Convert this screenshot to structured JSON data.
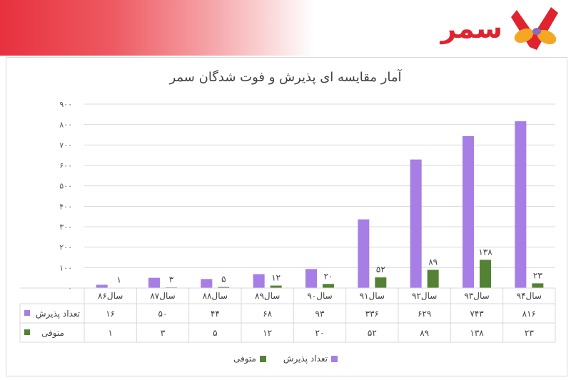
{
  "brand": {
    "name": "سمر",
    "logo_colors": [
      "#e0242f",
      "#f5a623",
      "#8a6bbf"
    ]
  },
  "chart_data": {
    "type": "bar",
    "title": "آمار مقایسه ای پذیرش و فوت شدگان سمر",
    "categories": [
      "سال۸۶",
      "سال۸۷",
      "سال۸۸",
      "سال۸۹",
      "سال۹۰",
      "سال۹۱",
      "سال۹۲",
      "سال۹۳",
      "سال۹۴"
    ],
    "series": [
      {
        "name": "تعداد پذیرش",
        "color": "#a67ee6",
        "values": [
          16,
          50,
          44,
          68,
          93,
          336,
          629,
          743,
          816
        ],
        "table_labels": [
          "۱۶",
          "۵۰",
          "۴۴",
          "۶۸",
          "۹۳",
          "۳۳۶",
          "۶۲۹",
          "۷۴۳",
          "۸۱۶"
        ]
      },
      {
        "name": "متوفی",
        "color": "#548235",
        "values": [
          1,
          3,
          5,
          12,
          20,
          52,
          89,
          138,
          23
        ],
        "table_labels": [
          "۱",
          "۳",
          "۵",
          "۱۲",
          "۲۰",
          "۵۲",
          "۸۹",
          "۱۳۸",
          "۲۳"
        ]
      }
    ],
    "ylim": [
      0,
      900
    ],
    "yticks": [
      0,
      100,
      200,
      300,
      400,
      500,
      600,
      700,
      800,
      900
    ],
    "ytick_labels": [
      "۰",
      "۱۰۰",
      "۲۰۰",
      "۳۰۰",
      "۴۰۰",
      "۵۰۰",
      "۶۰۰",
      "۷۰۰",
      "۸۰۰",
      "۹۰۰"
    ],
    "data_labels_series": 1,
    "grid": true,
    "legend_position": "bottom",
    "data_table": true
  }
}
